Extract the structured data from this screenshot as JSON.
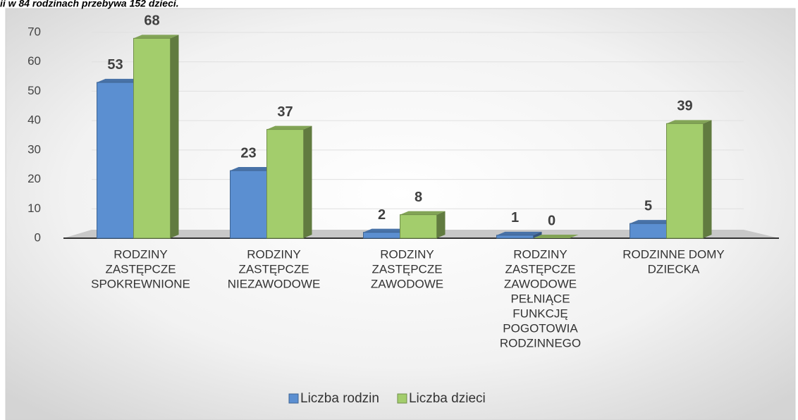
{
  "caption": "ii  w 84 rodzinach przebywa 152 dzieci.",
  "chart_data": {
    "type": "bar",
    "categories": [
      [
        "RODZINY",
        "ZASTĘPCZE",
        "SPOKREWNIONE"
      ],
      [
        "RODZINY",
        "ZASTĘPCZE",
        "NIEZAWODOWE"
      ],
      [
        "RODZINY",
        "ZASTĘPCZE",
        "ZAWODOWE"
      ],
      [
        "RODZINY",
        "ZASTĘPCZE",
        "ZAWODOWE",
        "PEŁNIĄCE",
        "FUNKCJĘ",
        "POGOTOWIA",
        "RODZINNEGO"
      ],
      [
        "RODZINNE DOMY",
        "DZIECKA"
      ]
    ],
    "series": [
      {
        "name": "Liczba rodzin",
        "color": "#5b8fd1",
        "values": [
          53,
          23,
          2,
          1,
          5
        ]
      },
      {
        "name": "Liczba dzieci",
        "color": "#a3cd6c",
        "values": [
          68,
          37,
          8,
          0,
          39
        ]
      }
    ],
    "ylim": [
      0,
      70
    ],
    "yticks": [
      0,
      10,
      20,
      30,
      40,
      50,
      60,
      70
    ],
    "grid": true,
    "legend": "bottom"
  }
}
